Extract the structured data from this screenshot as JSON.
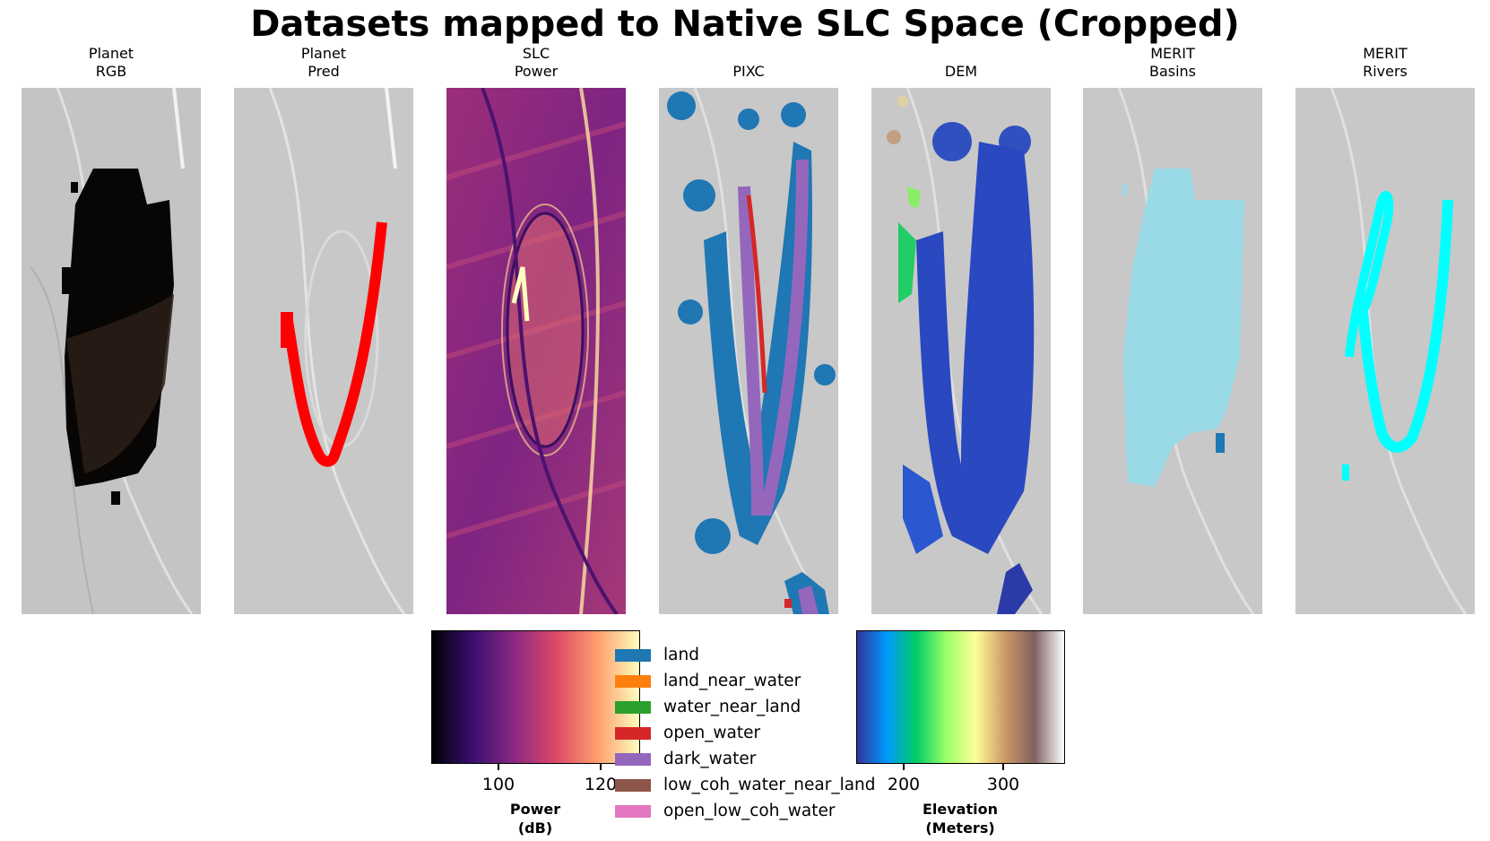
{
  "title": "Datasets mapped to Native SLC Space (Cropped)",
  "panels": [
    {
      "line1": "Planet",
      "line2": "RGB"
    },
    {
      "line1": "Planet",
      "line2": "Pred"
    },
    {
      "line1": "SLC",
      "line2": "Power"
    },
    {
      "line1": "",
      "line2": "PIXC"
    },
    {
      "line1": "",
      "line2": "DEM"
    },
    {
      "line1": "MERIT",
      "line2": "Basins"
    },
    {
      "line1": "MERIT",
      "line2": "Rivers"
    }
  ],
  "power_colorbar": {
    "label_line1": "Power",
    "label_line2": "(dB)",
    "ticks": [
      "100",
      "120"
    ],
    "tick_values": [
      100,
      120
    ],
    "range": [
      85,
      126
    ],
    "colors": [
      "#000004",
      "#3b0f70",
      "#8c2981",
      "#de4968",
      "#fe9f6d",
      "#fcfdbf"
    ]
  },
  "elevation_colorbar": {
    "label_line1": "Elevation",
    "label_line2": "(Meters)",
    "ticks": [
      "200",
      "300"
    ],
    "tick_values": [
      200,
      300
    ],
    "range": [
      152,
      360
    ],
    "colors": [
      "#333399",
      "#0099ff",
      "#00cc66",
      "#99ff66",
      "#ffff99",
      "#cc9966",
      "#806060",
      "#ffffff"
    ]
  },
  "legend": [
    {
      "label": "land",
      "color": "#1f77b4"
    },
    {
      "label": "land_near_water",
      "color": "#ff7f0e"
    },
    {
      "label": "water_near_land",
      "color": "#2ca02c"
    },
    {
      "label": "open_water",
      "color": "#d62728"
    },
    {
      "label": "dark_water",
      "color": "#9467bd"
    },
    {
      "label": "low_coh_water_near_land",
      "color": "#8c564b"
    },
    {
      "label": "open_low_coh_water",
      "color": "#e377c2"
    }
  ],
  "overlay_colors": {
    "rgb": "#1a1410",
    "pred": "#ff0000",
    "basins": "#9ad9e6",
    "rivers": "#00ffff",
    "dem": "#2a48c0"
  }
}
